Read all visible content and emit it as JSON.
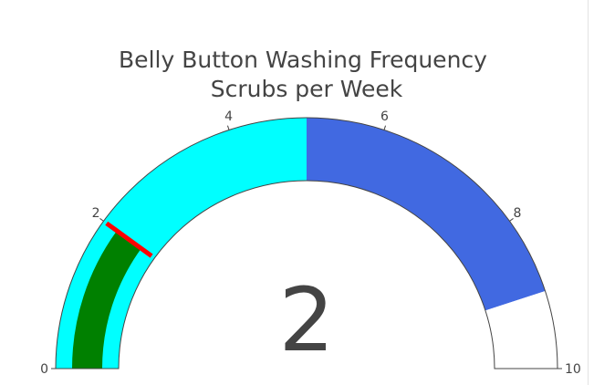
{
  "chart_data": {
    "type": "gauge",
    "title": "Belly Button Washing Frequency",
    "subtitle": "Scrubs per Week",
    "value": 2,
    "value_label": "2",
    "range": [
      0,
      10
    ],
    "ticks": [
      {
        "value": 0,
        "label": "0"
      },
      {
        "value": 2,
        "label": "2"
      },
      {
        "value": 4,
        "label": "4"
      },
      {
        "value": 6,
        "label": "6"
      },
      {
        "value": 8,
        "label": "8"
      },
      {
        "value": 10,
        "label": "10"
      }
    ],
    "steps": [
      {
        "range": [
          0,
          5
        ],
        "color": "#00ffff"
      },
      {
        "range": [
          5,
          9
        ],
        "color": "#4169e1"
      },
      {
        "range": [
          9,
          10
        ],
        "color": "#ffffff"
      }
    ],
    "bar": {
      "value": 2,
      "color": "#008000"
    },
    "threshold": {
      "value": 2,
      "color": "#ff0000"
    }
  }
}
